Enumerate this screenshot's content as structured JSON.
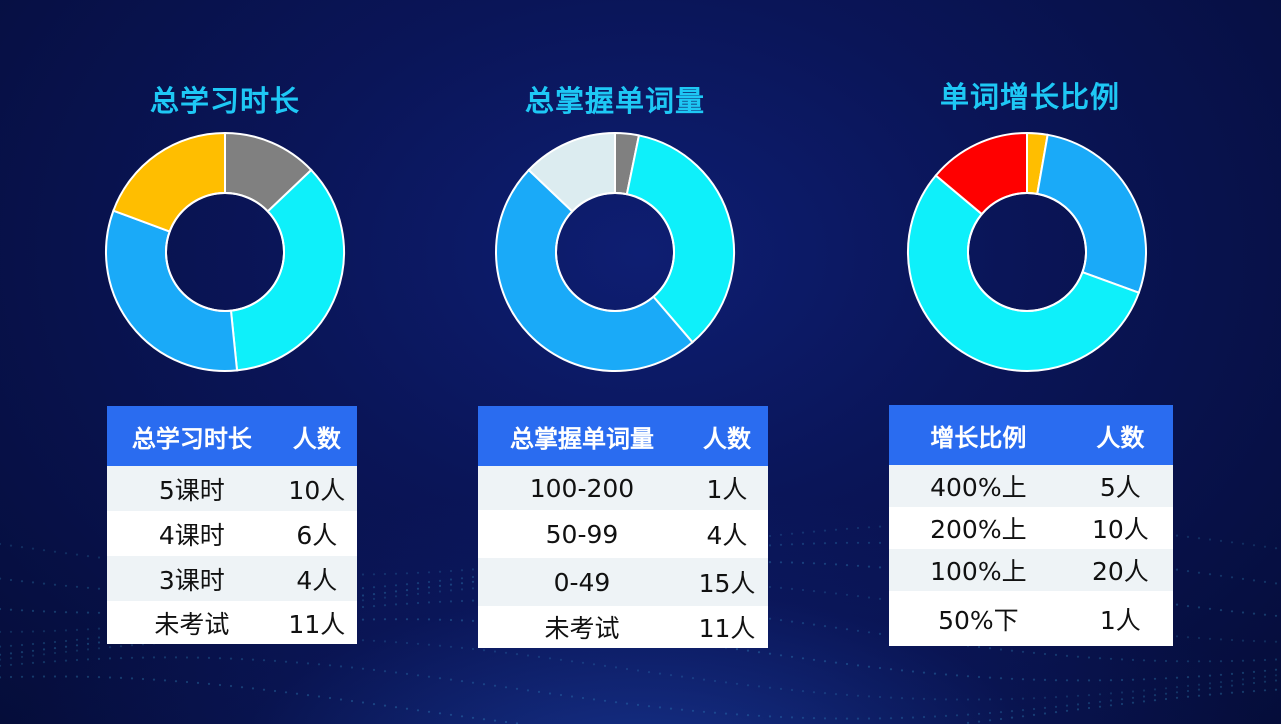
{
  "colors": {
    "grey": "#808080",
    "cyan": "#0ef0fa",
    "blue": "#1aaaf8",
    "yellow": "#ffbe00",
    "pale": "#dcecf0",
    "red": "#ff0000",
    "title": "#1ec8f5",
    "header": "#2a6cf0"
  },
  "chart_data": [
    {
      "type": "pie",
      "title": "总学习时长",
      "slices": [
        {
          "label": "5课时",
          "value": 10,
          "color": "#1aaaf8"
        },
        {
          "label": "4课时",
          "value": 6,
          "color": "#ffbe00"
        },
        {
          "label": "3课时",
          "value": 4,
          "color": "#808080"
        },
        {
          "label": "未考试",
          "value": 11,
          "color": "#0ef0fa"
        }
      ],
      "order": [
        2,
        3,
        0,
        1
      ],
      "table": {
        "headers": [
          "总学习时长",
          "人数"
        ],
        "rows": [
          [
            "5课时",
            "10人"
          ],
          [
            "4课时",
            "6人"
          ],
          [
            "3课时",
            "4人"
          ],
          [
            "未考试",
            "11人"
          ]
        ]
      }
    },
    {
      "type": "pie",
      "title": "总掌握单词量",
      "slices": [
        {
          "label": "100-200",
          "value": 1,
          "color": "#808080"
        },
        {
          "label": "50-99",
          "value": 4,
          "color": "#dcecf0"
        },
        {
          "label": "0-49",
          "value": 15,
          "color": "#1aaaf8"
        },
        {
          "label": "未考试",
          "value": 11,
          "color": "#0ef0fa"
        }
      ],
      "order": [
        0,
        3,
        2,
        1
      ],
      "table": {
        "headers": [
          "总掌握单词量",
          "人数"
        ],
        "rows": [
          [
            "100-200",
            "1人"
          ],
          [
            "50-99",
            "4人"
          ],
          [
            "0-49",
            "15人"
          ],
          [
            "未考试",
            "11人"
          ]
        ]
      }
    },
    {
      "type": "pie",
      "title": "单词增长比例",
      "slices": [
        {
          "label": "400%上",
          "value": 5,
          "color": "#ff0000"
        },
        {
          "label": "200%上",
          "value": 10,
          "color": "#1aaaf8"
        },
        {
          "label": "100%上",
          "value": 20,
          "color": "#0ef0fa"
        },
        {
          "label": "50%下",
          "value": 1,
          "color": "#ffbe00"
        }
      ],
      "order": [
        3,
        1,
        2,
        0
      ],
      "table": {
        "headers": [
          "增长比例",
          "人数"
        ],
        "rows": [
          [
            "400%上",
            "5人"
          ],
          [
            "200%上",
            "10人"
          ],
          [
            "100%上",
            "20人"
          ],
          [
            "50%下",
            "1人"
          ]
        ]
      }
    }
  ]
}
